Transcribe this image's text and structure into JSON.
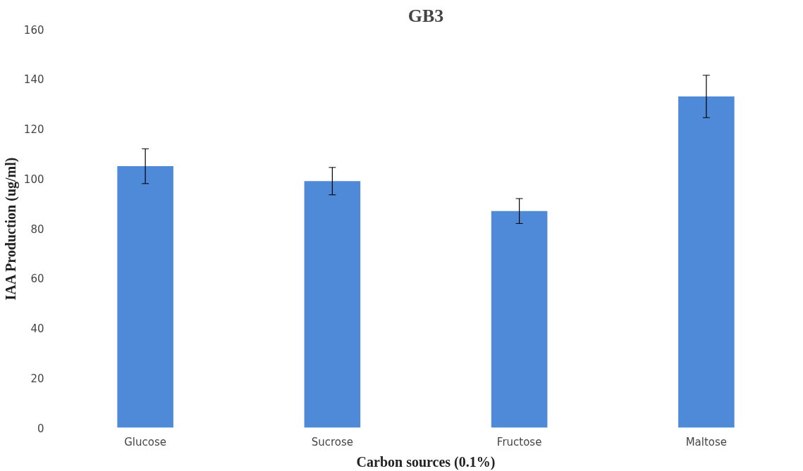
{
  "chart_data": {
    "type": "bar",
    "title": "GB3",
    "xlabel": "Carbon sources (0.1%)",
    "ylabel": "IAA Production (ug/ml)",
    "categories": [
      "Glucose",
      "Sucrose",
      "Fructose",
      "Maltose"
    ],
    "values": [
      105,
      99,
      87,
      133
    ],
    "errors": [
      7,
      5.5,
      5,
      8.5
    ],
    "color": "#4f8ad8",
    "ylim": [
      0,
      160
    ],
    "yticks": [
      0,
      20,
      40,
      60,
      80,
      100,
      120,
      140,
      160
    ],
    "grid": false
  }
}
